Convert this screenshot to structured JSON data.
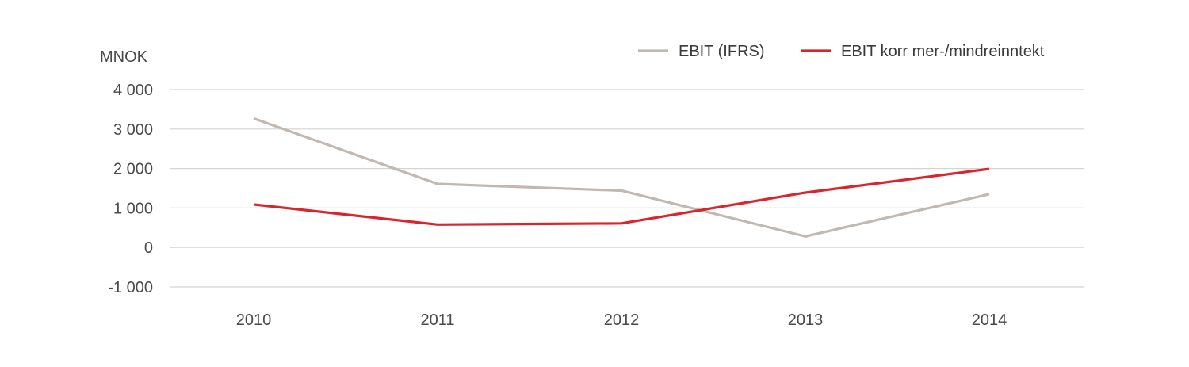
{
  "chart_data": {
    "type": "line",
    "title": "",
    "xlabel": "",
    "ylabel": "MNOK",
    "categories": [
      "2010",
      "2011",
      "2012",
      "2013",
      "2014"
    ],
    "ylim": [
      -1000,
      4000
    ],
    "y_ticks": [
      4000,
      3000,
      2000,
      1000,
      0,
      -1000
    ],
    "y_tick_labels": [
      "4 000",
      "3 000",
      "2 000",
      "1 000",
      "0",
      "-1 000"
    ],
    "grid": true,
    "legend_position": "top-right",
    "series": [
      {
        "name": "EBIT (IFRS)",
        "color": "#c1b8b1",
        "values": [
          3270,
          1610,
          1440,
          280,
          1350
        ]
      },
      {
        "name": "EBIT korr mer-/mindreinntekt",
        "color": "#d9262c",
        "values": [
          1090,
          580,
          610,
          1390,
          1990
        ]
      }
    ]
  }
}
